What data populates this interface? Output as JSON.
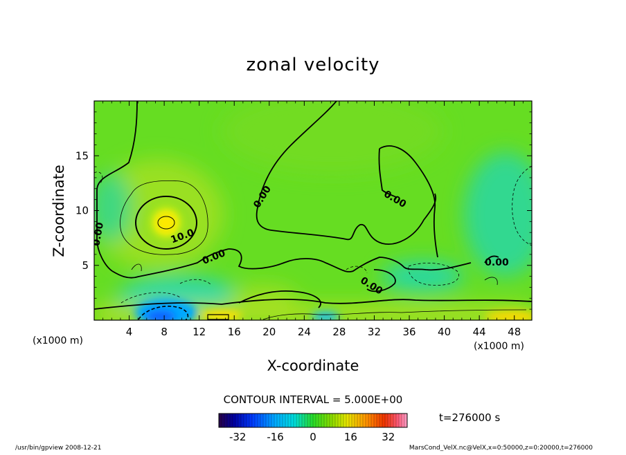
{
  "chart_data": {
    "type": "heatmap",
    "title": "zonal velocity",
    "xlabel": "X-coordinate",
    "ylabel": "Z-coordinate",
    "x_unit": "(x1000 m)",
    "y_unit": "(x1000 m)",
    "xlim": [
      0,
      50
    ],
    "ylim": [
      0,
      20
    ],
    "x_ticks": [
      4,
      8,
      12,
      16,
      20,
      24,
      28,
      32,
      36,
      40,
      44,
      48
    ],
    "y_ticks": [
      5,
      10,
      15
    ],
    "contour_interval_text": "CONTOUR INTERVAL = 5.000E+00",
    "contour_labels": [
      {
        "text": "0.00",
        "x": 0.8,
        "z": 7.8,
        "angle": -80
      },
      {
        "text": "10.0",
        "x": 10.2,
        "z": 7.4,
        "angle": -20
      },
      {
        "text": "0.00",
        "x": 13.8,
        "z": 5.5,
        "angle": -22
      },
      {
        "text": "0.00",
        "x": 19.5,
        "z": 11.1,
        "angle": -58
      },
      {
        "text": "0.00",
        "x": 34.2,
        "z": 10.8,
        "angle": 30
      },
      {
        "text": "0.00",
        "x": 31.5,
        "z": 2.9,
        "angle": 32
      },
      {
        "text": "0.00",
        "x": 46.0,
        "z": 5.0,
        "angle": 0
      }
    ],
    "time_label": "t=276000 s",
    "colorbar": {
      "min": -40,
      "max": 40,
      "ticks": [
        -32,
        -16,
        0,
        16,
        32
      ]
    }
  },
  "footer": {
    "left": "/usr/bin/gpview   2008-12-21",
    "right": "MarsCond_VelX.nc@VelX,x=0:50000,z=0:20000,t=276000"
  },
  "colors": {
    "background_field": "#66dd22",
    "jet_core": "#ffee00",
    "negative_region": "#00c0ff",
    "surface_strong_negative": "#0055ff"
  }
}
